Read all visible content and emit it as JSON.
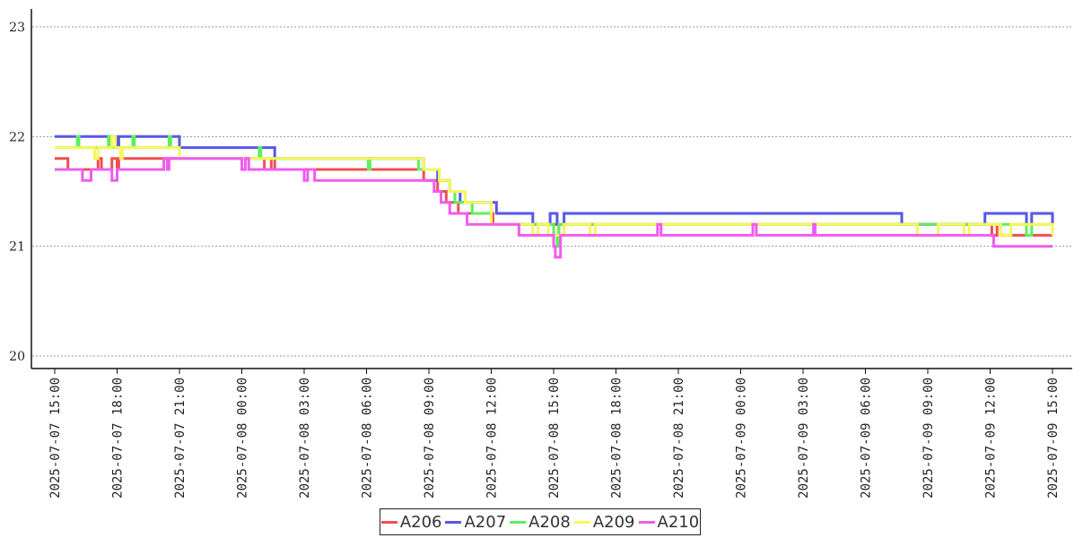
{
  "chart_data": {
    "type": "line",
    "title": "",
    "xlabel": "",
    "ylabel": "",
    "ylim": [
      20,
      23
    ],
    "yticks": [
      20,
      21,
      22,
      23
    ],
    "xlim": [
      "2025-07-07 15:00",
      "2025-07-09 15:00"
    ],
    "xticks": [
      "2025-07-07 15:00",
      "2025-07-07 18:00",
      "2025-07-07 21:00",
      "2025-07-08 00:00",
      "2025-07-08 03:00",
      "2025-07-08 06:00",
      "2025-07-08 09:00",
      "2025-07-08 12:00",
      "2025-07-08 15:00",
      "2025-07-08 18:00",
      "2025-07-08 21:00",
      "2025-07-09 00:00",
      "2025-07-09 03:00",
      "2025-07-09 06:00",
      "2025-07-09 09:00",
      "2025-07-09 12:00",
      "2025-07-09 15:00"
    ],
    "grid": "horizontal dotted",
    "legend_position": "bottom",
    "series": [
      {
        "name": "A206",
        "color": "#f04f4f",
        "points": [
          [
            "2025-07-07 15:00",
            21.8
          ],
          [
            "2025-07-07 15:38",
            21.7
          ],
          [
            "2025-07-07 17:00",
            21.7
          ],
          [
            "2025-07-07 17:05",
            21.8
          ],
          [
            "2025-07-07 17:15",
            21.7
          ],
          [
            "2025-07-07 17:40",
            21.7
          ],
          [
            "2025-07-07 17:45",
            21.8
          ],
          [
            "2025-07-07 18:00",
            21.7
          ],
          [
            "2025-07-07 18:05",
            21.8
          ],
          [
            "2025-07-08 01:00",
            21.8
          ],
          [
            "2025-07-08 01:05",
            21.7
          ],
          [
            "2025-07-08 01:25",
            21.8
          ],
          [
            "2025-07-08 01:35",
            21.7
          ],
          [
            "2025-07-08 08:40",
            21.7
          ],
          [
            "2025-07-08 08:45",
            21.6
          ],
          [
            "2025-07-08 09:20",
            21.6
          ],
          [
            "2025-07-08 09:25",
            21.5
          ],
          [
            "2025-07-08 09:45",
            21.5
          ],
          [
            "2025-07-08 09:50",
            21.4
          ],
          [
            "2025-07-08 10:20",
            21.4
          ],
          [
            "2025-07-08 10:25",
            21.3
          ],
          [
            "2025-07-08 12:00",
            21.3
          ],
          [
            "2025-07-08 12:05",
            21.2
          ],
          [
            "2025-07-08 15:10",
            21.2
          ],
          [
            "2025-07-08 15:15",
            21.1
          ],
          [
            "2025-07-08 15:25",
            21.1
          ],
          [
            "2025-07-08 15:30",
            21.2
          ],
          [
            "2025-07-09 12:00",
            21.2
          ],
          [
            "2025-07-09 12:05",
            21.1
          ],
          [
            "2025-07-09 12:20",
            21.2
          ],
          [
            "2025-07-09 12:30",
            21.1
          ],
          [
            "2025-07-09 15:00",
            21.1
          ]
        ]
      },
      {
        "name": "A207",
        "color": "#5757e8",
        "points": [
          [
            "2025-07-07 15:00",
            22.0
          ],
          [
            "2025-07-07 18:00",
            21.9
          ],
          [
            "2025-07-07 18:05",
            22.0
          ],
          [
            "2025-07-07 21:00",
            21.9
          ],
          [
            "2025-07-08 01:35",
            21.8
          ],
          [
            "2025-07-08 08:45",
            21.7
          ],
          [
            "2025-07-08 09:25",
            21.6
          ],
          [
            "2025-07-08 10:00",
            21.5
          ],
          [
            "2025-07-08 10:30",
            21.4
          ],
          [
            "2025-07-08 12:15",
            21.3
          ],
          [
            "2025-07-08 14:00",
            21.2
          ],
          [
            "2025-07-08 14:50",
            21.3
          ],
          [
            "2025-07-08 15:10",
            21.2
          ],
          [
            "2025-07-08 15:30",
            21.3
          ],
          [
            "2025-07-09 07:45",
            21.2
          ],
          [
            "2025-07-09 08:15",
            21.2
          ],
          [
            "2025-07-09 11:45",
            21.3
          ],
          [
            "2025-07-09 13:45",
            21.2
          ],
          [
            "2025-07-09 14:00",
            21.3
          ],
          [
            "2025-07-09 15:00",
            21.2
          ]
        ]
      },
      {
        "name": "A208",
        "color": "#5ef05e",
        "points": [
          [
            "2025-07-07 15:00",
            21.9
          ],
          [
            "2025-07-07 16:05",
            22.0
          ],
          [
            "2025-07-07 16:10",
            21.9
          ],
          [
            "2025-07-07 17:30",
            21.9
          ],
          [
            "2025-07-07 17:35",
            22.0
          ],
          [
            "2025-07-07 17:40",
            21.9
          ],
          [
            "2025-07-07 18:40",
            21.9
          ],
          [
            "2025-07-07 18:45",
            22.0
          ],
          [
            "2025-07-07 18:50",
            21.9
          ],
          [
            "2025-07-07 20:25",
            21.9
          ],
          [
            "2025-07-07 20:30",
            22.0
          ],
          [
            "2025-07-07 20:35",
            21.9
          ],
          [
            "2025-07-07 21:00",
            21.8
          ],
          [
            "2025-07-08 00:45",
            21.8
          ],
          [
            "2025-07-08 00:50",
            21.9
          ],
          [
            "2025-07-08 00:55",
            21.8
          ],
          [
            "2025-07-08 06:00",
            21.8
          ],
          [
            "2025-07-08 06:05",
            21.7
          ],
          [
            "2025-07-08 06:10",
            21.8
          ],
          [
            "2025-07-08 08:30",
            21.7
          ],
          [
            "2025-07-08 09:30",
            21.6
          ],
          [
            "2025-07-08 10:00",
            21.5
          ],
          [
            "2025-07-08 10:15",
            21.4
          ],
          [
            "2025-07-08 11:05",
            21.3
          ],
          [
            "2025-07-08 12:00",
            21.2
          ],
          [
            "2025-07-08 15:00",
            21.1
          ],
          [
            "2025-07-08 15:10",
            21.0
          ],
          [
            "2025-07-08 15:15",
            21.2
          ],
          [
            "2025-07-09 13:45",
            21.1
          ],
          [
            "2025-07-09 14:00",
            21.2
          ],
          [
            "2025-07-09 15:00",
            21.2
          ]
        ]
      },
      {
        "name": "A209",
        "color": "#f7f75a",
        "points": [
          [
            "2025-07-07 15:00",
            21.9
          ],
          [
            "2025-07-07 16:55",
            21.8
          ],
          [
            "2025-07-07 17:05",
            21.9
          ],
          [
            "2025-07-07 17:45",
            22.0
          ],
          [
            "2025-07-07 17:55",
            21.9
          ],
          [
            "2025-07-07 18:10",
            21.8
          ],
          [
            "2025-07-07 18:15",
            21.9
          ],
          [
            "2025-07-07 21:00",
            21.8
          ],
          [
            "2025-07-08 02:40",
            21.8
          ],
          [
            "2025-07-08 08:45",
            21.7
          ],
          [
            "2025-07-08 09:30",
            21.6
          ],
          [
            "2025-07-08 10:00",
            21.5
          ],
          [
            "2025-07-08 10:45",
            21.4
          ],
          [
            "2025-07-08 12:00",
            21.2
          ],
          [
            "2025-07-08 14:00",
            21.1
          ],
          [
            "2025-07-08 14:15",
            21.2
          ],
          [
            "2025-07-08 14:45",
            21.1
          ],
          [
            "2025-07-08 15:30",
            21.2
          ],
          [
            "2025-07-08 16:45",
            21.1
          ],
          [
            "2025-07-08 17:00",
            21.2
          ],
          [
            "2025-07-09 08:30",
            21.1
          ],
          [
            "2025-07-09 09:30",
            21.2
          ],
          [
            "2025-07-09 10:45",
            21.1
          ],
          [
            "2025-07-09 11:00",
            21.2
          ],
          [
            "2025-07-09 12:30",
            21.1
          ],
          [
            "2025-07-09 13:00",
            21.2
          ],
          [
            "2025-07-09 15:00",
            21.1
          ]
        ]
      },
      {
        "name": "A210",
        "color": "#f05cf0",
        "points": [
          [
            "2025-07-07 15:00",
            21.7
          ],
          [
            "2025-07-07 16:20",
            21.6
          ],
          [
            "2025-07-07 16:45",
            21.7
          ],
          [
            "2025-07-07 17:40",
            21.7
          ],
          [
            "2025-07-07 17:45",
            21.6
          ],
          [
            "2025-07-07 18:00",
            21.7
          ],
          [
            "2025-07-07 20:15",
            21.8
          ],
          [
            "2025-07-07 20:25",
            21.7
          ],
          [
            "2025-07-07 20:30",
            21.8
          ],
          [
            "2025-07-08 00:00",
            21.7
          ],
          [
            "2025-07-08 00:10",
            21.8
          ],
          [
            "2025-07-08 00:20",
            21.7
          ],
          [
            "2025-07-08 03:00",
            21.6
          ],
          [
            "2025-07-08 03:10",
            21.7
          ],
          [
            "2025-07-08 03:30",
            21.6
          ],
          [
            "2025-07-08 08:40",
            21.6
          ],
          [
            "2025-07-08 09:15",
            21.5
          ],
          [
            "2025-07-08 09:35",
            21.4
          ],
          [
            "2025-07-08 10:00",
            21.3
          ],
          [
            "2025-07-08 10:50",
            21.2
          ],
          [
            "2025-07-08 13:20",
            21.1
          ],
          [
            "2025-07-08 15:00",
            21.0
          ],
          [
            "2025-07-08 15:05",
            20.9
          ],
          [
            "2025-07-08 15:20",
            21.1
          ],
          [
            "2025-07-08 20:00",
            21.2
          ],
          [
            "2025-07-08 20:10",
            21.1
          ],
          [
            "2025-07-09 00:35",
            21.2
          ],
          [
            "2025-07-09 00:45",
            21.1
          ],
          [
            "2025-07-09 03:30",
            21.2
          ],
          [
            "2025-07-09 03:35",
            21.1
          ],
          [
            "2025-07-09 12:10",
            21.0
          ],
          [
            "2025-07-09 15:00",
            21.0
          ]
        ]
      }
    ]
  }
}
